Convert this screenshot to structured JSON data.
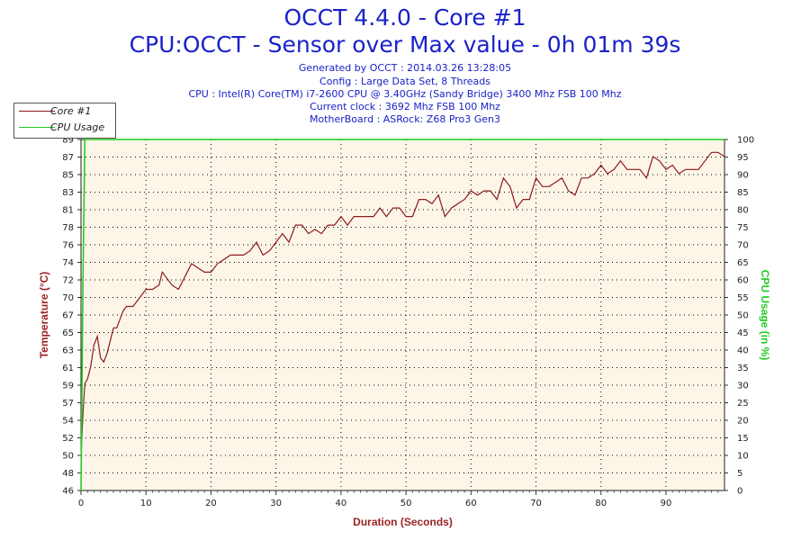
{
  "header": {
    "title1": "OCCT 4.4.0 - Core #1",
    "title2": "CPU:OCCT - Sensor over Max value - 0h 01m 39s",
    "info": [
      "Generated by OCCT : 2014.03.26 13:28:05",
      "Config : Large Data Set, 8 Threads",
      "CPU : Intel(R) Core(TM) i7-2600 CPU @ 3.40GHz (Sandy Bridge) 3400 Mhz FSB 100 Mhz",
      "Current clock : 3692 Mhz FSB 100 Mhz",
      "MotherBoard : ASRock: Z68 Pro3 Gen3"
    ]
  },
  "legend": {
    "items": [
      {
        "label": "Core #1",
        "color": "#8b1a1a"
      },
      {
        "label": "CPU Usage",
        "color": "#22cc22"
      }
    ]
  },
  "colors": {
    "plot_background": "#fdf6e8",
    "temperature": "#8b1a1a",
    "cpu_usage": "#22cc22",
    "axis_title_left": "#9b2323",
    "axis_title_right": "#22cc22",
    "x_title": "#9b2323"
  },
  "chart_data": {
    "type": "line",
    "title": "OCCT 4.4.0 - Core #1",
    "xlabel": "Duration (Seconds)",
    "ylabel": "Temperature (°C)",
    "y2label": "CPU Usage (in %)",
    "xlim": [
      0,
      99
    ],
    "ylim": [
      46,
      87
    ],
    "y2lim": [
      0,
      100
    ],
    "x_ticks": [
      0,
      10,
      20,
      30,
      40,
      50,
      60,
      70,
      80,
      90
    ],
    "y_ticks": [
      "46",
      "48",
      "50",
      "52",
      "54",
      "57",
      "59",
      "61",
      "63",
      "65",
      "67",
      "70",
      "72",
      "74",
      "76",
      "78",
      "81",
      "83",
      "85",
      "87",
      "89"
    ],
    "y2_ticks": [
      0,
      5,
      10,
      15,
      20,
      25,
      30,
      35,
      40,
      45,
      50,
      55,
      60,
      65,
      70,
      75,
      80,
      85,
      90,
      95,
      100
    ],
    "grid": true,
    "legend": "top-left",
    "series": [
      {
        "name": "Core #1",
        "axis": "left",
        "x": [
          0,
          0.3,
          0.6,
          1,
          1.5,
          2,
          2.5,
          3,
          3.5,
          4,
          5,
          5.5,
          6,
          6.5,
          7,
          8,
          9,
          10,
          11,
          12,
          12.5,
          13,
          14,
          15,
          16,
          17,
          18,
          19,
          20,
          21,
          22,
          23,
          24,
          25,
          26,
          27,
          28,
          29,
          30,
          31,
          32,
          33,
          34,
          35,
          36,
          37,
          38,
          39,
          40,
          41,
          42,
          43,
          44,
          45,
          46,
          47,
          48,
          49,
          50,
          51,
          52,
          53,
          54,
          55,
          56,
          57,
          58,
          59,
          60,
          61,
          62,
          63,
          64,
          65,
          66,
          67,
          68,
          69,
          70,
          71,
          72,
          73,
          74,
          75,
          76,
          77,
          78,
          79,
          80,
          81,
          82,
          83,
          84,
          85,
          86,
          87,
          88,
          89,
          90,
          91,
          92,
          93,
          94,
          95,
          96,
          97,
          98,
          99
        ],
        "values": [
          50,
          55,
          58.5,
          59,
          60.5,
          63,
          64,
          61.5,
          61,
          62,
          65,
          65,
          66,
          67,
          67.5,
          67.5,
          68.5,
          69.5,
          69.5,
          70,
          71.5,
          71,
          70,
          69.5,
          71,
          72.5,
          72,
          71.5,
          71.5,
          72.5,
          73,
          73.5,
          73.5,
          73.5,
          74,
          75,
          73.5,
          74,
          75,
          76,
          75,
          77,
          77,
          76,
          76.5,
          76,
          77,
          77,
          78,
          77,
          78,
          78,
          78,
          78,
          79,
          78,
          79,
          79,
          78,
          78,
          80,
          80,
          79.5,
          80.5,
          78,
          79,
          79.5,
          80,
          81,
          80.5,
          81,
          81,
          80,
          82.5,
          81.5,
          79,
          80,
          80,
          82.5,
          81.5,
          81.5,
          82,
          82.5,
          81,
          80.5,
          82.5,
          82.5,
          83,
          84,
          83,
          83.5,
          84.5,
          83.5,
          83.5,
          83.5,
          82.5,
          85,
          84.5,
          83.5,
          84,
          83,
          83.5,
          83.5,
          83.5,
          84.5,
          85.5,
          85.5,
          85
        ]
      },
      {
        "name": "CPU Usage",
        "axis": "right",
        "x": [
          0,
          0.3,
          0.6,
          1,
          99
        ],
        "values": [
          0,
          60,
          100,
          100,
          100
        ]
      }
    ]
  }
}
